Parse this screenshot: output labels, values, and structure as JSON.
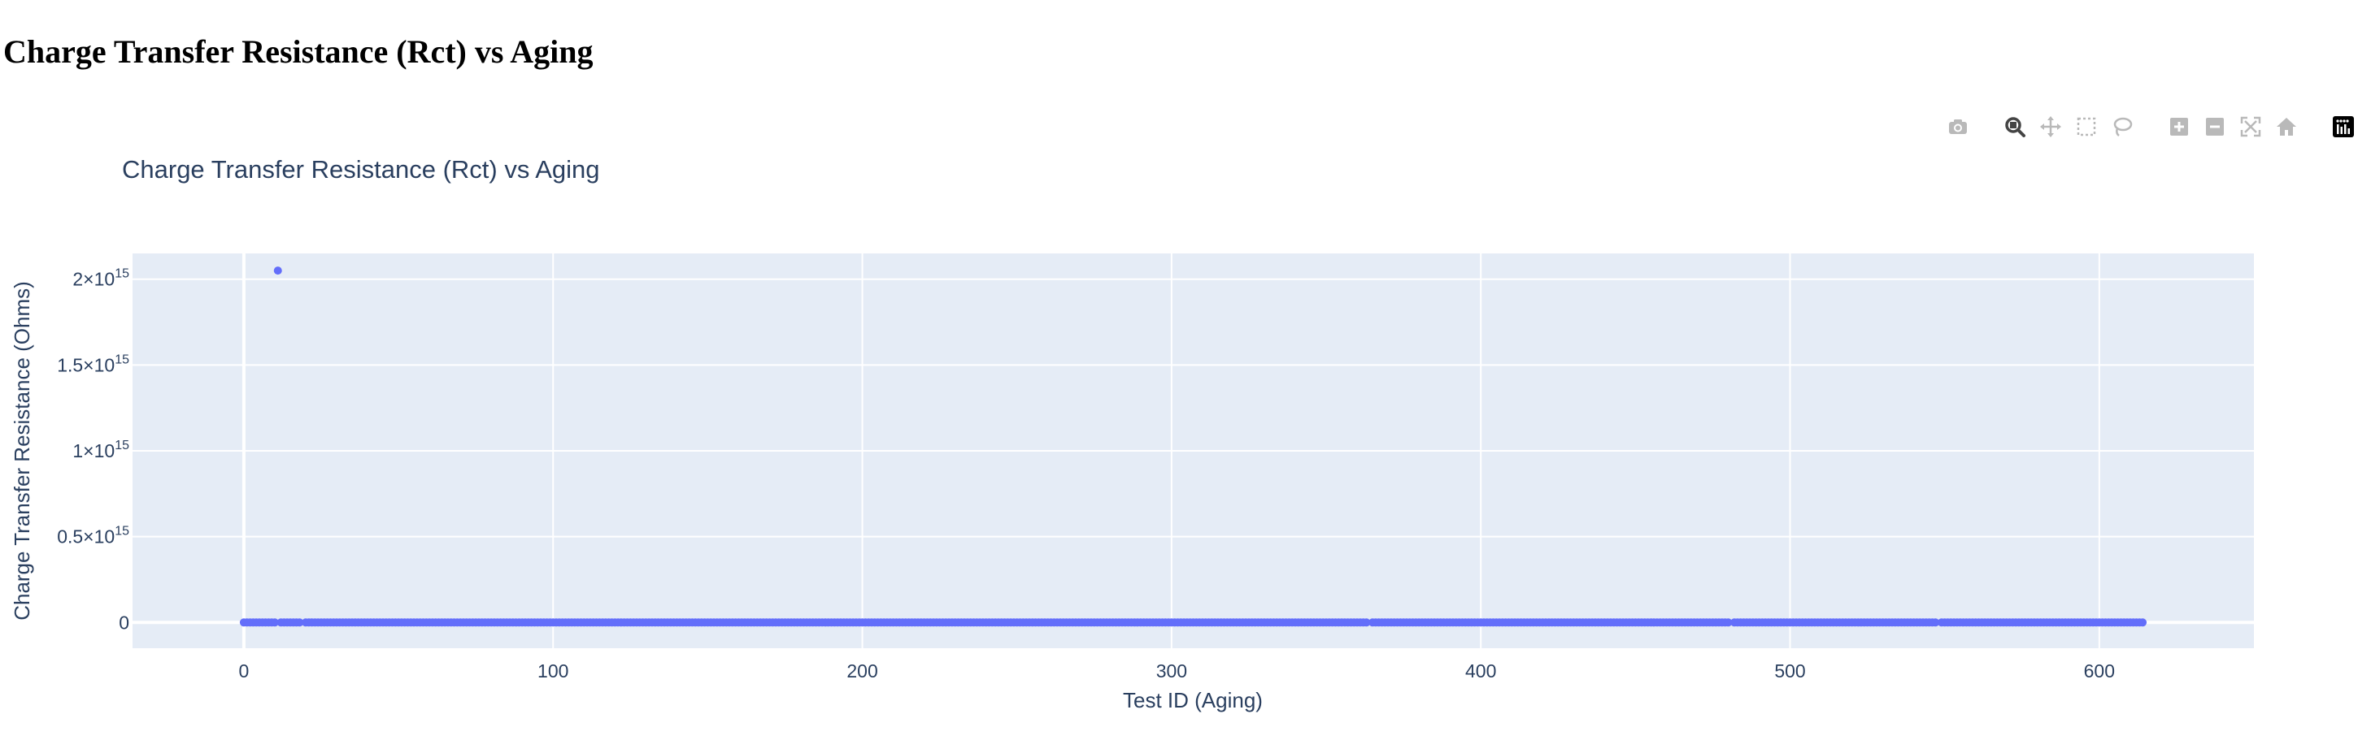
{
  "page": {
    "heading": "Charge Transfer Resistance (Rct) vs Aging"
  },
  "modebar": {
    "buttons": [
      {
        "name": "camera-icon",
        "group": 0,
        "active": false
      },
      {
        "name": "zoom-icon",
        "group": 1,
        "active": true
      },
      {
        "name": "pan-icon",
        "group": 1,
        "active": false
      },
      {
        "name": "box-select-icon",
        "group": 1,
        "active": false
      },
      {
        "name": "lasso-select-icon",
        "group": 1,
        "active": false
      },
      {
        "name": "zoom-in-icon",
        "group": 2,
        "active": false
      },
      {
        "name": "zoom-out-icon",
        "group": 2,
        "active": false
      },
      {
        "name": "autoscale-icon",
        "group": 2,
        "active": false
      },
      {
        "name": "reset-axes-icon",
        "group": 2,
        "active": false
      },
      {
        "name": "plotly-logo-icon",
        "group": 3,
        "active": false
      }
    ],
    "icon_color": "#b9b9b9",
    "active_color": "#444444"
  },
  "chart_data": {
    "type": "scatter",
    "title": "Charge Transfer Resistance (Rct) vs Aging",
    "xlabel": "Test ID (Aging)",
    "ylabel": "Charge Transfer Resistance (Ohms)",
    "xlim": [
      -36,
      650
    ],
    "ylim": [
      -150000000000000.0,
      2150000000000000.0
    ],
    "x_ticks": [
      0,
      100,
      200,
      300,
      400,
      500,
      600
    ],
    "x_tick_labels": [
      "0",
      "100",
      "200",
      "300",
      "400",
      "500",
      "600"
    ],
    "y_ticks": [
      0,
      500000000000000.0,
      1000000000000000.0,
      1500000000000000.0,
      2000000000000000.0
    ],
    "y_tick_labels": [
      {
        "base": "0",
        "exp": ""
      },
      {
        "base": "0.5×10",
        "exp": "15"
      },
      {
        "base": "1×10",
        "exp": "15"
      },
      {
        "base": "1.5×10",
        "exp": "15"
      },
      {
        "base": "2×10",
        "exp": "15"
      }
    ],
    "grid": true,
    "legend": "none",
    "marker_color": "#636efa",
    "plot_background": "#e5ecf6",
    "series": [
      {
        "x_range": [
          0,
          614
        ],
        "value": 0,
        "gaps": [
          19,
          364,
          481,
          548
        ],
        "outliers": [
          {
            "x": 11,
            "y": 2050000000000000.0
          }
        ]
      }
    ]
  }
}
